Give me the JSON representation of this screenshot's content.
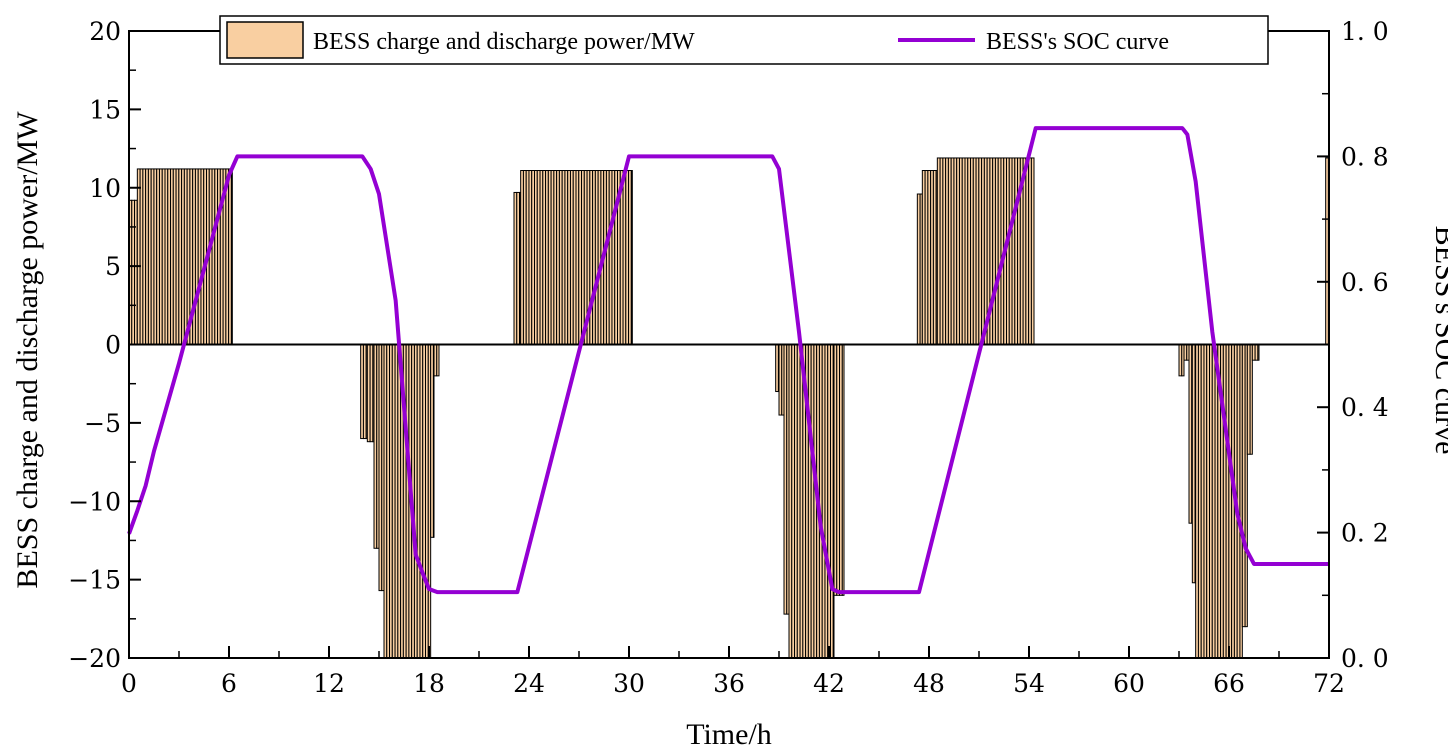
{
  "chart_data": {
    "type": "bar+line",
    "xlabel": "Time/h",
    "ylabel": "BESS charge and discharge power/MW",
    "y2label": "BESS's SOC curve",
    "xlim": [
      0,
      72
    ],
    "ylim": [
      -20,
      20
    ],
    "y2lim": [
      0.0,
      1.0
    ],
    "xticks": [
      0,
      6,
      12,
      18,
      24,
      30,
      36,
      42,
      48,
      54,
      60,
      66,
      72
    ],
    "xtick_labels": [
      "0",
      "6",
      "12",
      "18",
      "24",
      "30",
      "36",
      "42",
      "48",
      "54",
      "60",
      "66",
      "72"
    ],
    "yticks": [
      -20,
      -15,
      -10,
      -5,
      0,
      5,
      10,
      15,
      20
    ],
    "ytick_labels": [
      "−20",
      "−15",
      "−10",
      "−5",
      "0",
      "5",
      "10",
      "15",
      "20"
    ],
    "y2ticks": [
      0.0,
      0.2,
      0.4,
      0.6,
      0.8,
      1.0
    ],
    "y2tick_labels": [
      "0. 0",
      "0. 2",
      "0. 4",
      "0. 6",
      "0. 8",
      "1. 0"
    ],
    "legend_position": "top",
    "series": [
      {
        "name": "BESS charge and discharge power/MW",
        "type": "bar",
        "axis": "left",
        "color": "#F9CFA1",
        "stroke": "#000000",
        "segments": [
          {
            "from": 0,
            "to": 0.5,
            "value": 9.2
          },
          {
            "from": 0.5,
            "to": 6.2,
            "value": 11.2
          },
          {
            "from": 13.9,
            "to": 14.3,
            "value": -6.0
          },
          {
            "from": 14.3,
            "to": 14.7,
            "value": -6.2
          },
          {
            "from": 14.7,
            "to": 15.0,
            "value": -13.0
          },
          {
            "from": 15.0,
            "to": 15.3,
            "value": -15.7
          },
          {
            "from": 15.3,
            "to": 18.1,
            "value": -20.0
          },
          {
            "from": 18.1,
            "to": 18.3,
            "value": -12.3
          },
          {
            "from": 18.3,
            "to": 18.6,
            "value": -2.0
          },
          {
            "from": 23.1,
            "to": 23.5,
            "value": 9.7
          },
          {
            "from": 23.5,
            "to": 30.2,
            "value": 11.1
          },
          {
            "from": 38.8,
            "to": 39.0,
            "value": -3.0
          },
          {
            "from": 39.0,
            "to": 39.3,
            "value": -4.5
          },
          {
            "from": 39.3,
            "to": 39.6,
            "value": -17.2
          },
          {
            "from": 39.6,
            "to": 42.3,
            "value": -20.0
          },
          {
            "from": 42.3,
            "to": 42.9,
            "value": -16.0
          },
          {
            "from": 47.3,
            "to": 47.6,
            "value": 9.6
          },
          {
            "from": 47.6,
            "to": 48.5,
            "value": 11.1
          },
          {
            "from": 48.5,
            "to": 54.3,
            "value": 11.9
          },
          {
            "from": 63.0,
            "to": 63.3,
            "value": -2.0
          },
          {
            "from": 63.3,
            "to": 63.6,
            "value": -1.0
          },
          {
            "from": 63.6,
            "to": 63.8,
            "value": -11.4
          },
          {
            "from": 63.8,
            "to": 64.0,
            "value": -15.2
          },
          {
            "from": 64.0,
            "to": 66.8,
            "value": -20.0
          },
          {
            "from": 66.8,
            "to": 67.1,
            "value": -18.0
          },
          {
            "from": 67.1,
            "to": 67.4,
            "value": -7.0
          },
          {
            "from": 67.4,
            "to": 67.8,
            "value": -1.0
          },
          {
            "from": 71.8,
            "to": 72.0,
            "value": 11.9
          }
        ]
      },
      {
        "name": "BESS's SOC curve",
        "type": "line",
        "axis": "right",
        "color": "#9400D3",
        "x": [
          0,
          0.5,
          1,
          1.5,
          3,
          6,
          6.5,
          14,
          14.5,
          15,
          16,
          17.2,
          17.7,
          18,
          18.5,
          23.3,
          30,
          30.5,
          38.6,
          39,
          40.2,
          41.5,
          42.2,
          42.6,
          47.4,
          54.4,
          63.2,
          63.5,
          64,
          65,
          66.5,
          67,
          67.5,
          72
        ],
        "y": [
          0.198,
          0.235,
          0.275,
          0.33,
          0.47,
          0.77,
          0.8,
          0.8,
          0.78,
          0.74,
          0.57,
          0.165,
          0.13,
          0.11,
          0.105,
          0.105,
          0.8,
          0.8,
          0.8,
          0.78,
          0.52,
          0.21,
          0.11,
          0.105,
          0.105,
          0.845,
          0.845,
          0.835,
          0.76,
          0.52,
          0.23,
          0.175,
          0.15,
          0.15
        ]
      }
    ]
  }
}
